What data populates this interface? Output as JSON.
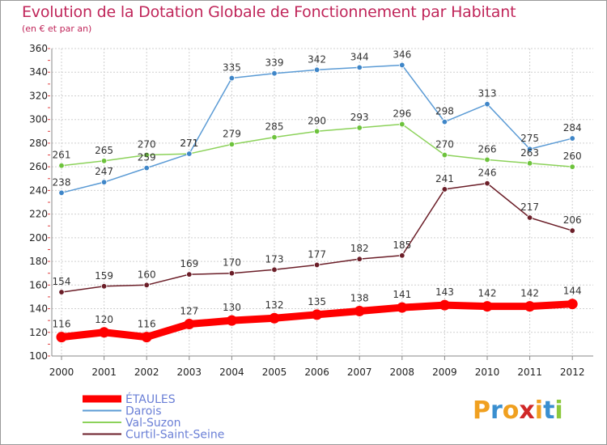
{
  "title": "Evolution de la Dotation Globale de Fonctionnement par Habitant",
  "subtitle": "(en € et par an)",
  "logo": {
    "letters": [
      "P",
      "r",
      "o",
      "x",
      "i",
      "t",
      "i"
    ],
    "colors": [
      "#f0a020",
      "#3a8fd0",
      "#f0a020",
      "#d02828",
      "#f0a020",
      "#3a8fd0",
      "#8cc83c"
    ]
  },
  "chart_data": {
    "type": "line",
    "x": [
      "2000",
      "2001",
      "2002",
      "2003",
      "2004",
      "2005",
      "2006",
      "2007",
      "2008",
      "2009",
      "2010",
      "2011",
      "2012"
    ],
    "ylim": [
      100,
      360
    ],
    "yticks": [
      "100",
      "120",
      "140",
      "160",
      "180",
      "200",
      "220",
      "240",
      "260",
      "280",
      "300",
      "320",
      "340",
      "360"
    ],
    "grid": true,
    "legend_position": "bottom-left",
    "series": [
      {
        "name": "Curtil-Saint-Seine",
        "color": "#6b1e28",
        "values": [
          154,
          159,
          160,
          169,
          170,
          173,
          177,
          182,
          185,
          241,
          246,
          217,
          206
        ]
      },
      {
        "name": "Val-Suzon",
        "color": "#8cd25a",
        "values": [
          261,
          265,
          270,
          271,
          279,
          285,
          290,
          293,
          296,
          270,
          266,
          263,
          260
        ]
      },
      {
        "name": "Darois",
        "color": "#5b9bd5",
        "values": [
          238,
          247,
          259,
          271,
          335,
          339,
          342,
          344,
          346,
          298,
          313,
          275,
          284
        ]
      },
      {
        "name": "ÉTAULES",
        "color": "#ff0000",
        "values": [
          116,
          120,
          116,
          127,
          130,
          132,
          135,
          138,
          141,
          143,
          142,
          142,
          144
        ]
      }
    ]
  }
}
